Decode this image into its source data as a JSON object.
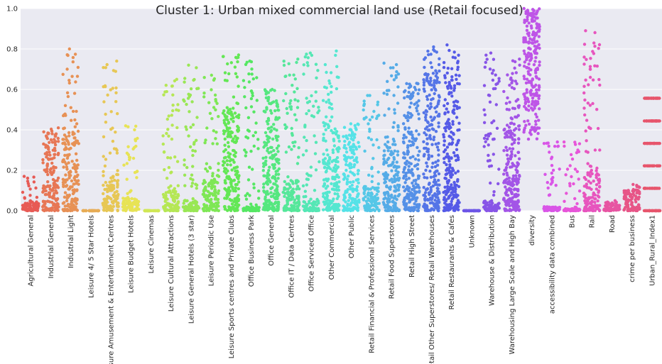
{
  "chart_data": {
    "type": "scatter",
    "title": "Cluster 1: Urban mixed commercial land use (Retail focused)",
    "xlabel": "",
    "ylabel": "",
    "ylim": [
      0,
      1.0
    ],
    "yticks": [
      "0.0",
      "0.2",
      "0.4",
      "0.6",
      "0.8",
      "1.0"
    ],
    "grid": true,
    "legend": "none",
    "categories": [
      "Agricultural General",
      "Industrial General",
      "Industrial Light",
      "Leisure 4/ 5 Star Hotels",
      "Leisure Amusement & Entertainment Centres",
      "Leisure Budget Hotels",
      "Leisure Cinemas",
      "Leisure Cultural Attractions",
      "Leisure General Hotels (3 star)",
      "Leisure Periodic Use",
      "Leisure Sports centres and Private Clubs",
      "Office Business Park",
      "Office General",
      "Office IT / Data Centres",
      "Office Serviced Office",
      "Other Commercial",
      "Other Public",
      "Retail Financial & Professional Services",
      "Retail Food Superstores",
      "Retail High Street",
      "Retail Other Superstores/ Retail Warehouses",
      "Retail Restaurants & Cafes",
      "Unknown",
      "Warehouse & Distribution",
      "Warehousing  Large Scale and High Bay",
      "diversity",
      "accessibility data combined",
      "Bus",
      "Rail",
      "Road",
      "crime per business",
      "Urban_Rural_Index1"
    ],
    "series_summary": [
      {
        "category": "Agricultural General",
        "min": 0.0,
        "dense_max": 0.05,
        "max": 0.17
      },
      {
        "category": "Industrial General",
        "min": 0.0,
        "dense_max": 0.38,
        "max": 0.41
      },
      {
        "category": "Industrial Light",
        "min": 0.0,
        "dense_max": 0.4,
        "max": 0.8
      },
      {
        "category": "Leisure 4/ 5 Star Hotels",
        "min": 0.0,
        "dense_max": 0.0,
        "max": 0.0
      },
      {
        "category": "Leisure Amusement & Entertainment Centres",
        "min": 0.0,
        "dense_max": 0.16,
        "max": 0.74
      },
      {
        "category": "Leisure Budget Hotels",
        "min": 0.0,
        "dense_max": 0.06,
        "max": 0.42
      },
      {
        "category": "Leisure Cinemas",
        "min": 0.0,
        "dense_max": 0.0,
        "max": 0.0
      },
      {
        "category": "Leisure Cultural Attractions",
        "min": 0.0,
        "dense_max": 0.1,
        "max": 0.65
      },
      {
        "category": "Leisure General Hotels (3 star)",
        "min": 0.0,
        "dense_max": 0.05,
        "max": 0.72
      },
      {
        "category": "Leisure Periodic Use",
        "min": 0.0,
        "dense_max": 0.15,
        "max": 0.67
      },
      {
        "category": "Leisure Sports centres and Private Clubs",
        "min": 0.0,
        "dense_max": 0.5,
        "max": 0.77
      },
      {
        "category": "Office Business Park",
        "min": 0.0,
        "dense_max": 0.02,
        "max": 0.74
      },
      {
        "category": "Office General",
        "min": 0.0,
        "dense_max": 0.58,
        "max": 0.6
      },
      {
        "category": "Office IT / Data Centres",
        "min": 0.0,
        "dense_max": 0.15,
        "max": 0.75
      },
      {
        "category": "Office Serviced Office",
        "min": 0.0,
        "dense_max": 0.05,
        "max": 0.78
      },
      {
        "category": "Other Commercial",
        "min": 0.0,
        "dense_max": 0.42,
        "max": 0.79
      },
      {
        "category": "Other Public",
        "min": 0.0,
        "dense_max": 0.4,
        "max": 0.43
      },
      {
        "category": "Retail Financial & Professional Services",
        "min": 0.0,
        "dense_max": 0.12,
        "max": 0.57
      },
      {
        "category": "Retail Food Superstores",
        "min": 0.0,
        "dense_max": 0.35,
        "max": 0.73
      },
      {
        "category": "Retail High Street",
        "min": 0.0,
        "dense_max": 0.6,
        "max": 0.63
      },
      {
        "category": "Retail Other Superstores/ Retail Warehouses",
        "min": 0.0,
        "dense_max": 0.72,
        "max": 0.81
      },
      {
        "category": "Retail Restaurants & Cafes",
        "min": 0.0,
        "dense_max": 0.68,
        "max": 0.82
      },
      {
        "category": "Unknown",
        "min": 0.0,
        "dense_max": 0.0,
        "max": 0.0
      },
      {
        "category": "Warehouse & Distribution",
        "min": 0.0,
        "dense_max": 0.05,
        "max": 0.78
      },
      {
        "category": "Warehousing  Large Scale and High Bay",
        "min": 0.0,
        "dense_max": 0.55,
        "max": 0.75
      },
      {
        "category": "diversity",
        "min": 0.35,
        "dense_max": 0.98,
        "max": 1.0
      },
      {
        "category": "accessibility data combined",
        "min": 0.0,
        "dense_max": 0.02,
        "max": 0.34
      },
      {
        "category": "Bus",
        "min": 0.0,
        "dense_max": 0.01,
        "max": 0.34
      },
      {
        "category": "Rail",
        "min": 0.0,
        "dense_max": 0.2,
        "max": 0.89
      },
      {
        "category": "Road",
        "min": 0.0,
        "dense_max": 0.03,
        "max": 0.05
      },
      {
        "category": "crime per business",
        "min": 0.0,
        "dense_max": 0.1,
        "max": 0.13
      },
      {
        "category": "Urban_Rural_Index1",
        "min": 0.0,
        "dense_max": 0.56,
        "max": 0.56,
        "levels": [
          0.0,
          0.111,
          0.222,
          0.333,
          0.444,
          0.556
        ]
      }
    ]
  }
}
